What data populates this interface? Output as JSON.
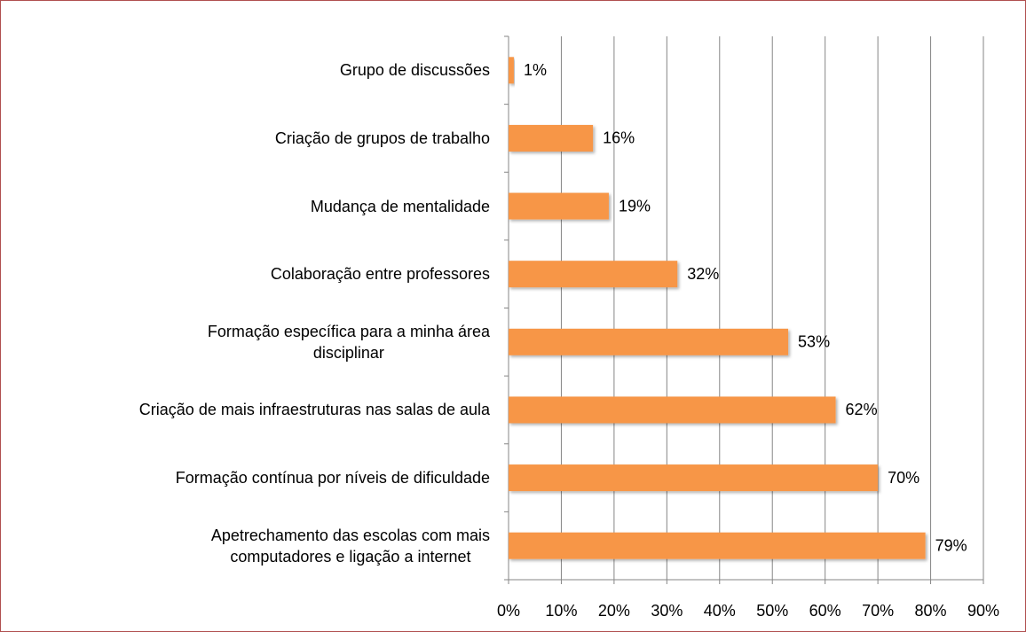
{
  "chart_data": {
    "type": "barh",
    "categories": [
      "Grupo de discussões",
      "Criação de grupos de trabalho",
      "Mudança de mentalidade",
      "Colaboração entre professores",
      "Formação específica para a minha área\ndisciplinar",
      "Criação de mais infraestruturas nas salas de aula",
      "Formação contínua por níveis de dificuldade",
      "Apetrechamento das escolas com mais\ncomputadores e ligação a internet"
    ],
    "values": [
      1,
      16,
      19,
      32,
      53,
      62,
      70,
      79
    ],
    "value_labels": [
      "1%",
      "16%",
      "19%",
      "32%",
      "53%",
      "62%",
      "70%",
      "79%"
    ],
    "color": "#f79646",
    "xlim": [
      0,
      90
    ],
    "xticks": [
      {
        "value": 0,
        "label": "0%"
      },
      {
        "value": 10,
        "label": "10%"
      },
      {
        "value": 20,
        "label": "20%"
      },
      {
        "value": 30,
        "label": "30%"
      },
      {
        "value": 40,
        "label": "40%"
      },
      {
        "value": 50,
        "label": "50%"
      },
      {
        "value": 60,
        "label": "60%"
      },
      {
        "value": 70,
        "label": "70%"
      },
      {
        "value": 80,
        "label": "80%"
      },
      {
        "value": 90,
        "label": "90%"
      }
    ],
    "grid": true
  }
}
